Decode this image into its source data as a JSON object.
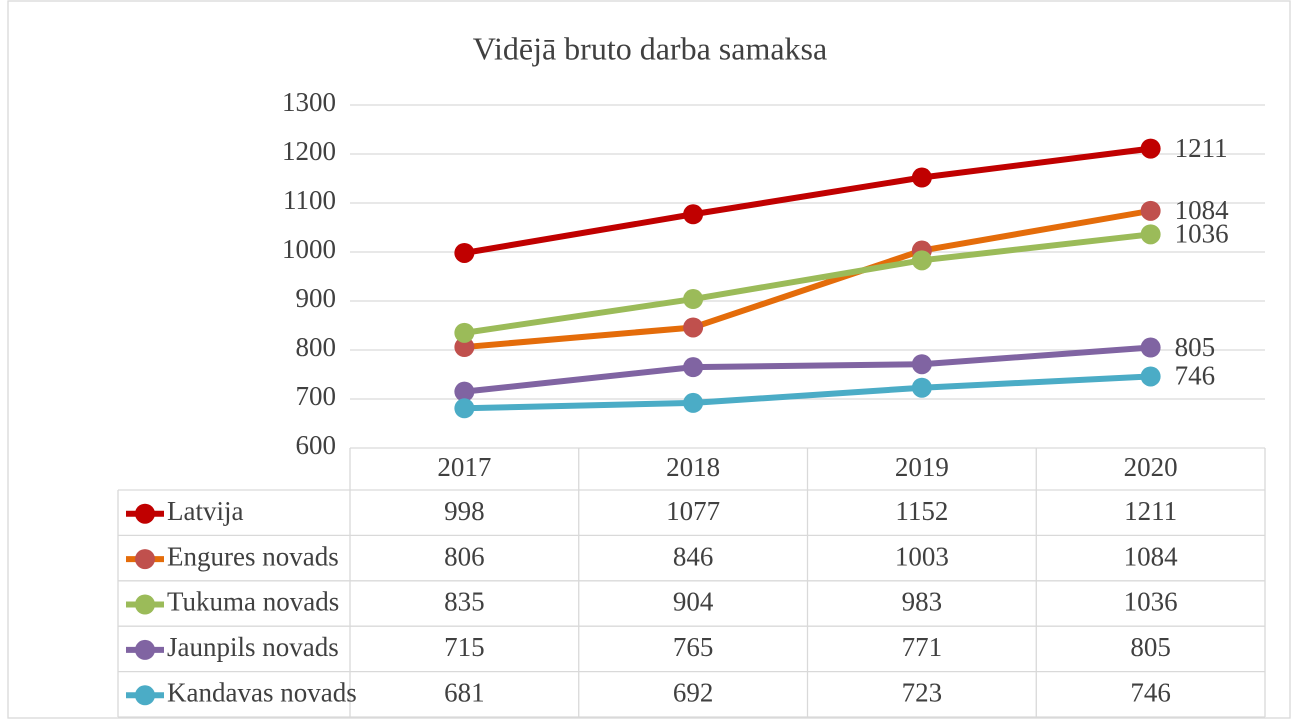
{
  "chart_data": {
    "type": "line",
    "title": "Vidējā bruto darba samaksa",
    "categories": [
      "2017",
      "2018",
      "2019",
      "2020"
    ],
    "series": [
      {
        "name": "Latvija",
        "color": "#c00000",
        "marker_color": "#c00000",
        "values": [
          998,
          1077,
          1152,
          1211
        ]
      },
      {
        "name": "Engures novads",
        "color": "#e46c0a",
        "marker_color": "#c0504d",
        "values": [
          806,
          846,
          1003,
          1084
        ]
      },
      {
        "name": "Tukuma novads",
        "color": "#9bbb59",
        "marker_color": "#9bbb59",
        "values": [
          835,
          904,
          983,
          1036
        ]
      },
      {
        "name": "Jaunpils novads",
        "color": "#8064a2",
        "marker_color": "#8064a2",
        "values": [
          715,
          765,
          771,
          805
        ]
      },
      {
        "name": "Kandavas novads",
        "color": "#4bacc6",
        "marker_color": "#4bacc6",
        "values": [
          681,
          692,
          723,
          746
        ]
      }
    ],
    "ylim": [
      600,
      1300
    ],
    "yticks": [
      600,
      700,
      800,
      900,
      1000,
      1100,
      1200,
      1300
    ],
    "grid": true,
    "data_table": true
  }
}
